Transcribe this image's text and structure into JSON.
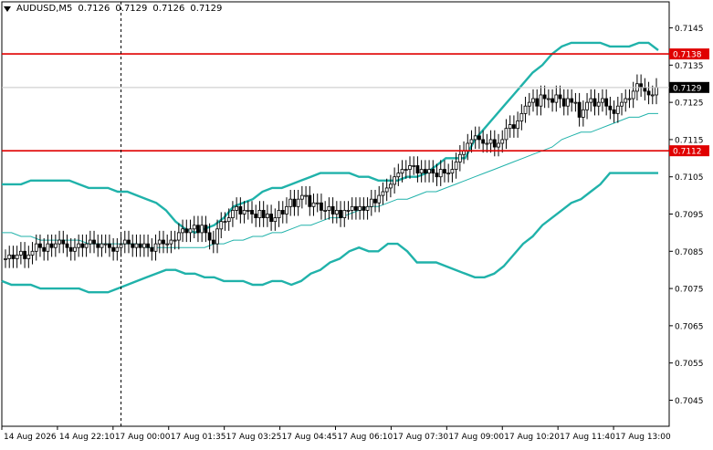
{
  "header": {
    "symbol": "AUDUSD,M5",
    "open": "0.7126",
    "high": "0.7129",
    "low": "0.7126",
    "close": "0.7129"
  },
  "colors": {
    "candle": "#000000",
    "bands": "#20b2aa",
    "level": "#e00000",
    "level_label_text": "#ffffff",
    "price_label_bg": "#000000",
    "grid": "#c8c8c8"
  },
  "chart_data": {
    "type": "candlestick",
    "ylim": [
      0.7038,
      0.7152
    ],
    "y_ticks": [
      "0.7145",
      "0.7135",
      "0.7125",
      "0.7115",
      "0.7105",
      "0.7095",
      "0.7085",
      "0.7075",
      "0.7065",
      "0.7055",
      "0.7045"
    ],
    "x_ticks": [
      "14 Aug 2026",
      "14 Aug 22:10",
      "17 Aug 00:00",
      "17 Aug 01:35",
      "17 Aug 03:25",
      "17 Aug 04:45",
      "17 Aug 06:10",
      "17 Aug 07:30",
      "17 Aug 09:00",
      "17 Aug 10:20",
      "17 Aug 11:40",
      "17 Aug 13:00"
    ],
    "levels": [
      {
        "value": 0.7138,
        "label": "0.7138"
      },
      {
        "value": 0.7112,
        "label": "0.7112"
      }
    ],
    "current_price": {
      "value": 0.7129,
      "label": "0.7129"
    },
    "cursor_x_index": 30,
    "close": [
      0.7083,
      0.7084,
      0.7083,
      0.7084,
      0.7085,
      0.7083,
      0.7084,
      0.7085,
      0.7087,
      0.7086,
      0.7085,
      0.7087,
      0.7086,
      0.7087,
      0.7088,
      0.7087,
      0.7086,
      0.7085,
      0.7086,
      0.7087,
      0.7086,
      0.7087,
      0.7088,
      0.7087,
      0.7086,
      0.7087,
      0.7087,
      0.7086,
      0.7085,
      0.7086,
      0.7087,
      0.7088,
      0.7087,
      0.7086,
      0.7087,
      0.7086,
      0.7087,
      0.7086,
      0.7085,
      0.7087,
      0.7088,
      0.7087,
      0.7087,
      0.7088,
      0.7088,
      0.709,
      0.7091,
      0.709,
      0.7091,
      0.7092,
      0.709,
      0.7092,
      0.709,
      0.7088,
      0.7087,
      0.7091,
      0.7093,
      0.7093,
      0.7094,
      0.7096,
      0.7097,
      0.7095,
      0.7096,
      0.7096,
      0.7095,
      0.7094,
      0.7096,
      0.7094,
      0.7095,
      0.7093,
      0.7094,
      0.7096,
      0.7095,
      0.7097,
      0.7099,
      0.7097,
      0.7099,
      0.71,
      0.71,
      0.7097,
      0.7098,
      0.7098,
      0.7096,
      0.7096,
      0.7097,
      0.7095,
      0.7096,
      0.7094,
      0.7096,
      0.7096,
      0.7097,
      0.7096,
      0.7097,
      0.7096,
      0.7097,
      0.7099,
      0.7098,
      0.71,
      0.7101,
      0.7102,
      0.7103,
      0.7105,
      0.7106,
      0.7107,
      0.7107,
      0.7108,
      0.7108,
      0.7106,
      0.7107,
      0.7106,
      0.7107,
      0.7106,
      0.7105,
      0.7107,
      0.7106,
      0.7106,
      0.7107,
      0.7109,
      0.7111,
      0.7112,
      0.7114,
      0.7115,
      0.7116,
      0.7115,
      0.7114,
      0.7114,
      0.7115,
      0.7113,
      0.7114,
      0.7115,
      0.7118,
      0.7119,
      0.7118,
      0.712,
      0.7122,
      0.7124,
      0.7125,
      0.7126,
      0.7124,
      0.7127,
      0.7126,
      0.7126,
      0.7125,
      0.7127,
      0.7126,
      0.7124,
      0.7126,
      0.7125,
      0.7125,
      0.7121,
      0.7123,
      0.7125,
      0.7126,
      0.7124,
      0.7125,
      0.7126,
      0.7124,
      0.7123,
      0.7122,
      0.7124,
      0.7125,
      0.7126,
      0.7126,
      0.7128,
      0.713,
      0.7129,
      0.7128,
      0.7127,
      0.7127,
      0.7129
    ],
    "bb_upper": [
      0.7103,
      0.7103,
      0.7103,
      0.7104,
      0.7104,
      0.7104,
      0.7104,
      0.7104,
      0.7103,
      0.7102,
      0.7102,
      0.7102,
      0.7101,
      0.7101,
      0.71,
      0.7099,
      0.7098,
      0.7096,
      0.7093,
      0.7091,
      0.709,
      0.7091,
      0.7092,
      0.7094,
      0.7097,
      0.7098,
      0.7099,
      0.7101,
      0.7102,
      0.7102,
      0.7103,
      0.7104,
      0.7105,
      0.7106,
      0.7106,
      0.7106,
      0.7106,
      0.7105,
      0.7105,
      0.7104,
      0.7104,
      0.7104,
      0.7105,
      0.7105,
      0.7106,
      0.7108,
      0.711,
      0.711,
      0.711,
      0.7115,
      0.7118,
      0.7121,
      0.7124,
      0.7127,
      0.713,
      0.7133,
      0.7135,
      0.7138,
      0.714,
      0.7141,
      0.7141,
      0.7141,
      0.7141,
      0.714,
      0.714,
      0.714,
      0.7141,
      0.7141,
      0.7139
    ],
    "bb_middle": [
      0.709,
      0.709,
      0.7089,
      0.7089,
      0.7088,
      0.7088,
      0.7088,
      0.7088,
      0.7088,
      0.7087,
      0.7087,
      0.7087,
      0.7087,
      0.7087,
      0.7087,
      0.7086,
      0.7086,
      0.7086,
      0.7086,
      0.7086,
      0.7086,
      0.7086,
      0.7087,
      0.7087,
      0.7088,
      0.7088,
      0.7089,
      0.7089,
      0.709,
      0.709,
      0.7091,
      0.7092,
      0.7092,
      0.7093,
      0.7094,
      0.7094,
      0.7095,
      0.7096,
      0.7097,
      0.7097,
      0.7098,
      0.7099,
      0.7099,
      0.71,
      0.7101,
      0.7101,
      0.7102,
      0.7103,
      0.7104,
      0.7105,
      0.7106,
      0.7107,
      0.7108,
      0.7109,
      0.711,
      0.7111,
      0.7112,
      0.7113,
      0.7115,
      0.7116,
      0.7117,
      0.7117,
      0.7118,
      0.7119,
      0.712,
      0.7121,
      0.7121,
      0.7122,
      0.7122
    ],
    "bb_lower": [
      0.7077,
      0.7076,
      0.7076,
      0.7076,
      0.7075,
      0.7075,
      0.7075,
      0.7075,
      0.7075,
      0.7074,
      0.7074,
      0.7074,
      0.7075,
      0.7076,
      0.7077,
      0.7078,
      0.7079,
      0.708,
      0.708,
      0.7079,
      0.7079,
      0.7078,
      0.7078,
      0.7077,
      0.7077,
      0.7077,
      0.7076,
      0.7076,
      0.7077,
      0.7077,
      0.7076,
      0.7077,
      0.7079,
      0.708,
      0.7082,
      0.7083,
      0.7085,
      0.7086,
      0.7085,
      0.7085,
      0.7087,
      0.7087,
      0.7085,
      0.7082,
      0.7082,
      0.7082,
      0.7081,
      0.708,
      0.7079,
      0.7078,
      0.7078,
      0.7079,
      0.7081,
      0.7084,
      0.7087,
      0.7089,
      0.7092,
      0.7094,
      0.7096,
      0.7098,
      0.7099,
      0.7101,
      0.7103,
      0.7106,
      0.7106,
      0.7106,
      0.7106,
      0.7106,
      0.7106
    ]
  }
}
